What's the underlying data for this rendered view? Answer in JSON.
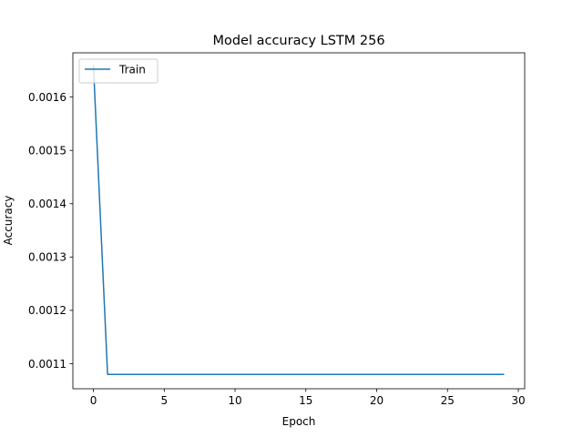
{
  "chart_data": {
    "type": "line",
    "title": "Model accuracy LSTM 256",
    "xlabel": "Epoch",
    "ylabel": "Accuracy",
    "xlim": [
      -1.45,
      30.45
    ],
    "ylim": [
      0.001053,
      0.001683
    ],
    "x_ticks": [
      0,
      5,
      10,
      15,
      20,
      25,
      30
    ],
    "y_ticks": [
      0.0011,
      0.0012,
      0.0013,
      0.0014,
      0.0015,
      0.0016
    ],
    "y_tick_labels": [
      "0.0011",
      "0.0012",
      "0.0013",
      "0.0014",
      "0.0015",
      "0.0016"
    ],
    "grid": false,
    "legend_position": "upper left",
    "series": [
      {
        "name": "Train",
        "color": "#1f77b4",
        "x": [
          0,
          1,
          2,
          3,
          4,
          5,
          6,
          7,
          8,
          9,
          10,
          11,
          12,
          13,
          14,
          15,
          16,
          17,
          18,
          19,
          20,
          21,
          22,
          23,
          24,
          25,
          26,
          27,
          28,
          29
        ],
        "y": [
          0.00166,
          0.00108,
          0.00108,
          0.00108,
          0.00108,
          0.00108,
          0.00108,
          0.00108,
          0.00108,
          0.00108,
          0.00108,
          0.00108,
          0.00108,
          0.00108,
          0.00108,
          0.00108,
          0.00108,
          0.00108,
          0.00108,
          0.00108,
          0.00108,
          0.00108,
          0.00108,
          0.00108,
          0.00108,
          0.00108,
          0.00108,
          0.00108,
          0.00108,
          0.00108
        ]
      }
    ]
  }
}
